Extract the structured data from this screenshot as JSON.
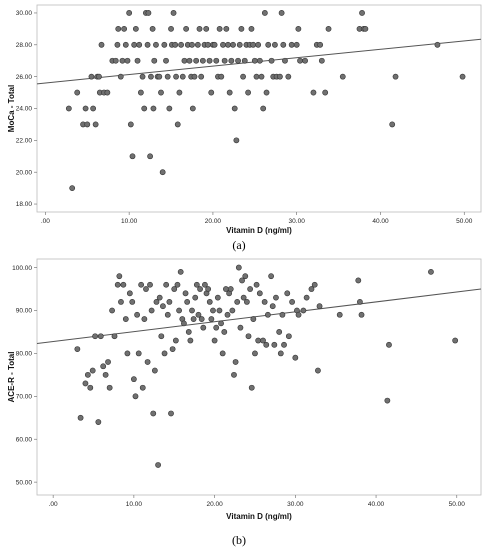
{
  "chart_data": [
    {
      "type": "scatter",
      "panel_label": "(a)",
      "xlabel": "Vitamin D (ng/ml)",
      "ylabel": "MoCa - Total",
      "xlim": [
        -1,
        52
      ],
      "ylim": [
        17.5,
        30.5
      ],
      "xticks": [
        ".00",
        "10.00",
        "20.00",
        "30.00",
        "40.00",
        "50.00"
      ],
      "xtick_values": [
        0,
        10,
        20,
        30,
        40,
        50
      ],
      "yticks": [
        "18.00",
        "20.00",
        "22.00",
        "24.00",
        "26.00",
        "28.00",
        "30.00"
      ],
      "ytick_values": [
        18,
        20,
        22,
        24,
        26,
        28,
        30
      ],
      "fit_line": {
        "x": [
          -1,
          52
        ],
        "y": [
          25.55,
          28.35
        ]
      },
      "grid": false,
      "points": [
        [
          3.2,
          19
        ],
        [
          2.8,
          24
        ],
        [
          3.8,
          25
        ],
        [
          4.5,
          23
        ],
        [
          4.8,
          24
        ],
        [
          5,
          23
        ],
        [
          5.5,
          26
        ],
        [
          5.7,
          24
        ],
        [
          6,
          23
        ],
        [
          6.2,
          26
        ],
        [
          6.4,
          26
        ],
        [
          6.5,
          25
        ],
        [
          6.7,
          28
        ],
        [
          7,
          25
        ],
        [
          7.4,
          25
        ],
        [
          8,
          27
        ],
        [
          8.4,
          27
        ],
        [
          8.6,
          28
        ],
        [
          8.7,
          29
        ],
        [
          9,
          26
        ],
        [
          9.2,
          27
        ],
        [
          9.4,
          29
        ],
        [
          9.6,
          28
        ],
        [
          9.8,
          27
        ],
        [
          10,
          30
        ],
        [
          10.2,
          23
        ],
        [
          10.4,
          21
        ],
        [
          10.6,
          28
        ],
        [
          10.8,
          29
        ],
        [
          11,
          27
        ],
        [
          11.2,
          28
        ],
        [
          11.4,
          25
        ],
        [
          11.6,
          26
        ],
        [
          11.8,
          24
        ],
        [
          12,
          30
        ],
        [
          12.2,
          28
        ],
        [
          12.3,
          30
        ],
        [
          12.5,
          21
        ],
        [
          12.6,
          26
        ],
        [
          12.8,
          29
        ],
        [
          12.9,
          24
        ],
        [
          13,
          27
        ],
        [
          13.2,
          28
        ],
        [
          13.4,
          26
        ],
        [
          13.6,
          26
        ],
        [
          13.8,
          25
        ],
        [
          14,
          20
        ],
        [
          14.2,
          28
        ],
        [
          14.4,
          27
        ],
        [
          14.6,
          26
        ],
        [
          14.8,
          24
        ],
        [
          15,
          29
        ],
        [
          15.1,
          28
        ],
        [
          15.3,
          30
        ],
        [
          15.5,
          28
        ],
        [
          15.6,
          26
        ],
        [
          15.8,
          23
        ],
        [
          16,
          25
        ],
        [
          16.2,
          28
        ],
        [
          16.4,
          26
        ],
        [
          16.6,
          27
        ],
        [
          16.8,
          29
        ],
        [
          17,
          28
        ],
        [
          17.2,
          27
        ],
        [
          17.4,
          26
        ],
        [
          17.5,
          28
        ],
        [
          17.6,
          24
        ],
        [
          17.8,
          26
        ],
        [
          18,
          27
        ],
        [
          18.2,
          28
        ],
        [
          18.4,
          29
        ],
        [
          18.6,
          26
        ],
        [
          18.8,
          27
        ],
        [
          19,
          28
        ],
        [
          19.2,
          29
        ],
        [
          19.4,
          28
        ],
        [
          19.6,
          27
        ],
        [
          19.8,
          25
        ],
        [
          20,
          28
        ],
        [
          20.2,
          28
        ],
        [
          20.4,
          27
        ],
        [
          20.6,
          26
        ],
        [
          20.8,
          29
        ],
        [
          21,
          26
        ],
        [
          21.2,
          28
        ],
        [
          21.4,
          27
        ],
        [
          21.6,
          29
        ],
        [
          21.8,
          28
        ],
        [
          22,
          25
        ],
        [
          22.2,
          27
        ],
        [
          22.4,
          28
        ],
        [
          22.6,
          24
        ],
        [
          22.8,
          22
        ],
        [
          23,
          27
        ],
        [
          23.2,
          28
        ],
        [
          23.4,
          29
        ],
        [
          23.6,
          26
        ],
        [
          23.8,
          27
        ],
        [
          24,
          28
        ],
        [
          24.2,
          25
        ],
        [
          24.4,
          28
        ],
        [
          24.6,
          29
        ],
        [
          24.8,
          28
        ],
        [
          25,
          27
        ],
        [
          25.2,
          26
        ],
        [
          25.4,
          28
        ],
        [
          25.6,
          27
        ],
        [
          25.8,
          26
        ],
        [
          26,
          24
        ],
        [
          26.2,
          30
        ],
        [
          26.4,
          25
        ],
        [
          26.6,
          28
        ],
        [
          27,
          27
        ],
        [
          27.2,
          26
        ],
        [
          27.4,
          28
        ],
        [
          27.6,
          26
        ],
        [
          28,
          26
        ],
        [
          28.2,
          30
        ],
        [
          28.4,
          28
        ],
        [
          28.6,
          27
        ],
        [
          29,
          26
        ],
        [
          29.4,
          28
        ],
        [
          30,
          28
        ],
        [
          30.2,
          29
        ],
        [
          30.4,
          27
        ],
        [
          31,
          27
        ],
        [
          32,
          25
        ],
        [
          32.4,
          28
        ],
        [
          32.8,
          28
        ],
        [
          33,
          27
        ],
        [
          33.4,
          25
        ],
        [
          33.8,
          29
        ],
        [
          35.5,
          26
        ],
        [
          37.5,
          29
        ],
        [
          37.8,
          30
        ],
        [
          38,
          29
        ],
        [
          38.2,
          29
        ],
        [
          41.4,
          23
        ],
        [
          41.8,
          26
        ],
        [
          46.8,
          28
        ],
        [
          49.8,
          26
        ]
      ]
    },
    {
      "type": "scatter",
      "panel_label": "(b)",
      "xlabel": "Vitamin D (ng/ml)",
      "ylabel": "ACE-R - Total",
      "xlim": [
        -2,
        53
      ],
      "ylim": [
        47,
        102
      ],
      "xticks": [
        ".00",
        "10.00",
        "20.00",
        "30.00",
        "40.00",
        "50.00"
      ],
      "xtick_values": [
        0,
        10,
        20,
        30,
        40,
        50
      ],
      "yticks": [
        "50.00",
        "60.00",
        "70.00",
        "80.00",
        "90.00",
        "100.00"
      ],
      "ytick_values": [
        50,
        60,
        70,
        80,
        90,
        100
      ],
      "fit_line": {
        "x": [
          -2,
          53
        ],
        "y": [
          82.3,
          95
        ]
      },
      "grid": false,
      "points": [
        [
          3,
          81
        ],
        [
          3.4,
          65
        ],
        [
          4,
          73
        ],
        [
          4.3,
          75
        ],
        [
          4.6,
          72
        ],
        [
          4.9,
          76
        ],
        [
          5.2,
          84
        ],
        [
          5.6,
          64
        ],
        [
          5.9,
          84
        ],
        [
          6.2,
          77
        ],
        [
          6.5,
          75
        ],
        [
          6.8,
          78
        ],
        [
          7,
          72
        ],
        [
          7.3,
          90
        ],
        [
          7.6,
          84
        ],
        [
          8,
          96
        ],
        [
          8.2,
          98
        ],
        [
          8.4,
          92
        ],
        [
          8.7,
          96
        ],
        [
          9,
          88
        ],
        [
          9.2,
          80
        ],
        [
          9.5,
          94
        ],
        [
          9.8,
          92
        ],
        [
          10,
          74
        ],
        [
          10.2,
          70
        ],
        [
          10.4,
          89
        ],
        [
          10.6,
          80
        ],
        [
          10.9,
          96
        ],
        [
          11.1,
          72
        ],
        [
          11.3,
          88
        ],
        [
          11.5,
          95
        ],
        [
          11.7,
          78
        ],
        [
          12,
          96
        ],
        [
          12.2,
          90
        ],
        [
          12.4,
          66
        ],
        [
          12.6,
          76
        ],
        [
          12.8,
          92
        ],
        [
          13,
          54
        ],
        [
          13.2,
          93
        ],
        [
          13.4,
          84
        ],
        [
          13.6,
          91
        ],
        [
          13.8,
          80
        ],
        [
          14,
          96
        ],
        [
          14.2,
          89
        ],
        [
          14.4,
          92
        ],
        [
          14.6,
          66
        ],
        [
          14.8,
          81
        ],
        [
          15,
          95
        ],
        [
          15.2,
          83
        ],
        [
          15.4,
          96
        ],
        [
          15.6,
          90
        ],
        [
          15.8,
          99
        ],
        [
          16,
          88
        ],
        [
          16.2,
          87
        ],
        [
          16.4,
          94
        ],
        [
          16.6,
          92
        ],
        [
          16.8,
          85
        ],
        [
          17,
          83
        ],
        [
          17.2,
          90
        ],
        [
          17.4,
          88
        ],
        [
          17.6,
          93
        ],
        [
          17.8,
          96
        ],
        [
          18,
          89
        ],
        [
          18.2,
          95
        ],
        [
          18.4,
          88
        ],
        [
          18.6,
          86
        ],
        [
          18.8,
          96
        ],
        [
          19,
          94
        ],
        [
          19.2,
          95
        ],
        [
          19.4,
          92
        ],
        [
          19.6,
          88
        ],
        [
          19.8,
          90
        ],
        [
          20,
          83
        ],
        [
          20.2,
          86
        ],
        [
          20.4,
          93
        ],
        [
          20.6,
          90
        ],
        [
          20.8,
          87
        ],
        [
          21,
          80
        ],
        [
          21.2,
          85
        ],
        [
          21.4,
          95
        ],
        [
          21.6,
          89
        ],
        [
          21.8,
          94
        ],
        [
          22,
          95
        ],
        [
          22.2,
          90
        ],
        [
          22.4,
          75
        ],
        [
          22.6,
          78
        ],
        [
          22.8,
          92
        ],
        [
          23,
          100
        ],
        [
          23.2,
          86
        ],
        [
          23.4,
          97
        ],
        [
          23.6,
          93
        ],
        [
          23.8,
          98
        ],
        [
          24,
          92
        ],
        [
          24.2,
          84
        ],
        [
          24.4,
          95
        ],
        [
          24.6,
          72
        ],
        [
          24.8,
          88
        ],
        [
          25,
          80
        ],
        [
          25.2,
          96
        ],
        [
          25.4,
          83
        ],
        [
          25.6,
          94
        ],
        [
          26,
          83
        ],
        [
          26.2,
          92
        ],
        [
          26.4,
          82
        ],
        [
          26.6,
          89
        ],
        [
          27,
          98
        ],
        [
          27.2,
          91
        ],
        [
          27.4,
          82
        ],
        [
          27.6,
          93
        ],
        [
          28,
          85
        ],
        [
          28.2,
          80
        ],
        [
          28.4,
          89
        ],
        [
          28.6,
          82
        ],
        [
          29,
          94
        ],
        [
          29.2,
          84
        ],
        [
          29.6,
          92
        ],
        [
          30,
          79
        ],
        [
          30.2,
          90
        ],
        [
          30.4,
          89
        ],
        [
          31,
          90
        ],
        [
          31.4,
          93
        ],
        [
          32,
          95
        ],
        [
          32.4,
          96
        ],
        [
          32.8,
          76
        ],
        [
          33,
          91
        ],
        [
          35.5,
          89
        ],
        [
          37.8,
          97
        ],
        [
          38,
          92
        ],
        [
          38.2,
          89
        ],
        [
          41.4,
          69
        ],
        [
          41.6,
          82
        ],
        [
          46.8,
          99
        ],
        [
          49.8,
          83
        ]
      ]
    }
  ]
}
